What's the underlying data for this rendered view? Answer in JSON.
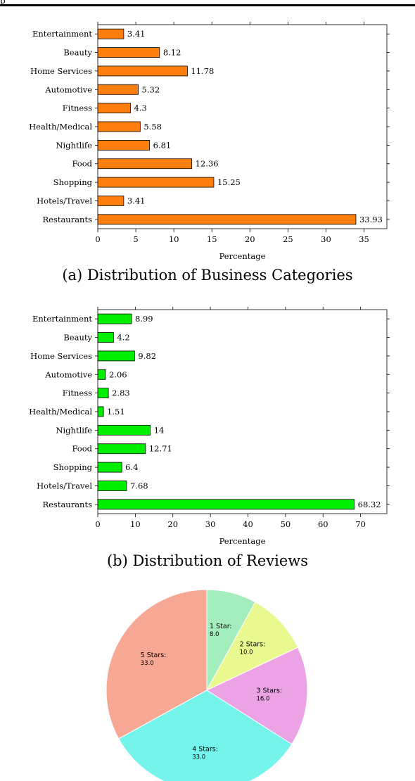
{
  "header": {
    "fragment": "p"
  },
  "figures": {
    "a": {
      "caption": "(a) Distribution of Business Categories"
    },
    "b": {
      "caption": "(b) Distribution of Reviews"
    }
  },
  "chart_data": [
    {
      "type": "bar",
      "orientation": "horizontal",
      "title": "",
      "xlabel": "Percentage",
      "ylabel": "",
      "color": "#ff7f0e",
      "xlim": [
        0,
        38
      ],
      "xticks": [
        0,
        5,
        10,
        15,
        20,
        25,
        30,
        35
      ],
      "categories": [
        "Entertainment",
        "Beauty",
        "Home Services",
        "Automotive",
        "Fitness",
        "Health/Medical",
        "Nightlife",
        "Food",
        "Shopping",
        "Hotels/Travel",
        "Restaurants"
      ],
      "values": [
        3.41,
        8.12,
        11.78,
        5.32,
        4.3,
        5.58,
        6.81,
        12.36,
        15.25,
        3.41,
        33.93
      ],
      "grid": false
    },
    {
      "type": "bar",
      "orientation": "horizontal",
      "title": "",
      "xlabel": "Percentage",
      "ylabel": "",
      "color": "#00ee00",
      "xlim": [
        0,
        77
      ],
      "xticks": [
        0,
        10,
        20,
        30,
        40,
        50,
        60,
        70
      ],
      "categories": [
        "Entertainment",
        "Beauty",
        "Home Services",
        "Automotive",
        "Fitness",
        "Health/Medical",
        "Nightlife",
        "Food",
        "Shopping",
        "Hotels/Travel",
        "Restaurants"
      ],
      "values": [
        8.99,
        4.2,
        9.82,
        2.06,
        2.83,
        1.51,
        14,
        12.71,
        6.4,
        7.68,
        68.32
      ],
      "grid": false
    },
    {
      "type": "pie",
      "title": "",
      "slices": [
        {
          "label": "1 Star:",
          "value": 8.0,
          "value_text": "8.0",
          "color": "#a3eebc"
        },
        {
          "label": "2 Stars:",
          "value": 10.0,
          "value_text": "10.0",
          "color": "#e9f88f"
        },
        {
          "label": "3 Stars:",
          "value": 16.0,
          "value_text": "16.0",
          "color": "#eba3e6"
        },
        {
          "label": "4 Stars:",
          "value": 33.0,
          "value_text": "33.0",
          "color": "#74f4ea"
        },
        {
          "label": "5 Stars:",
          "value": 33.0,
          "value_text": "33.0",
          "color": "#f6a895"
        }
      ]
    }
  ]
}
